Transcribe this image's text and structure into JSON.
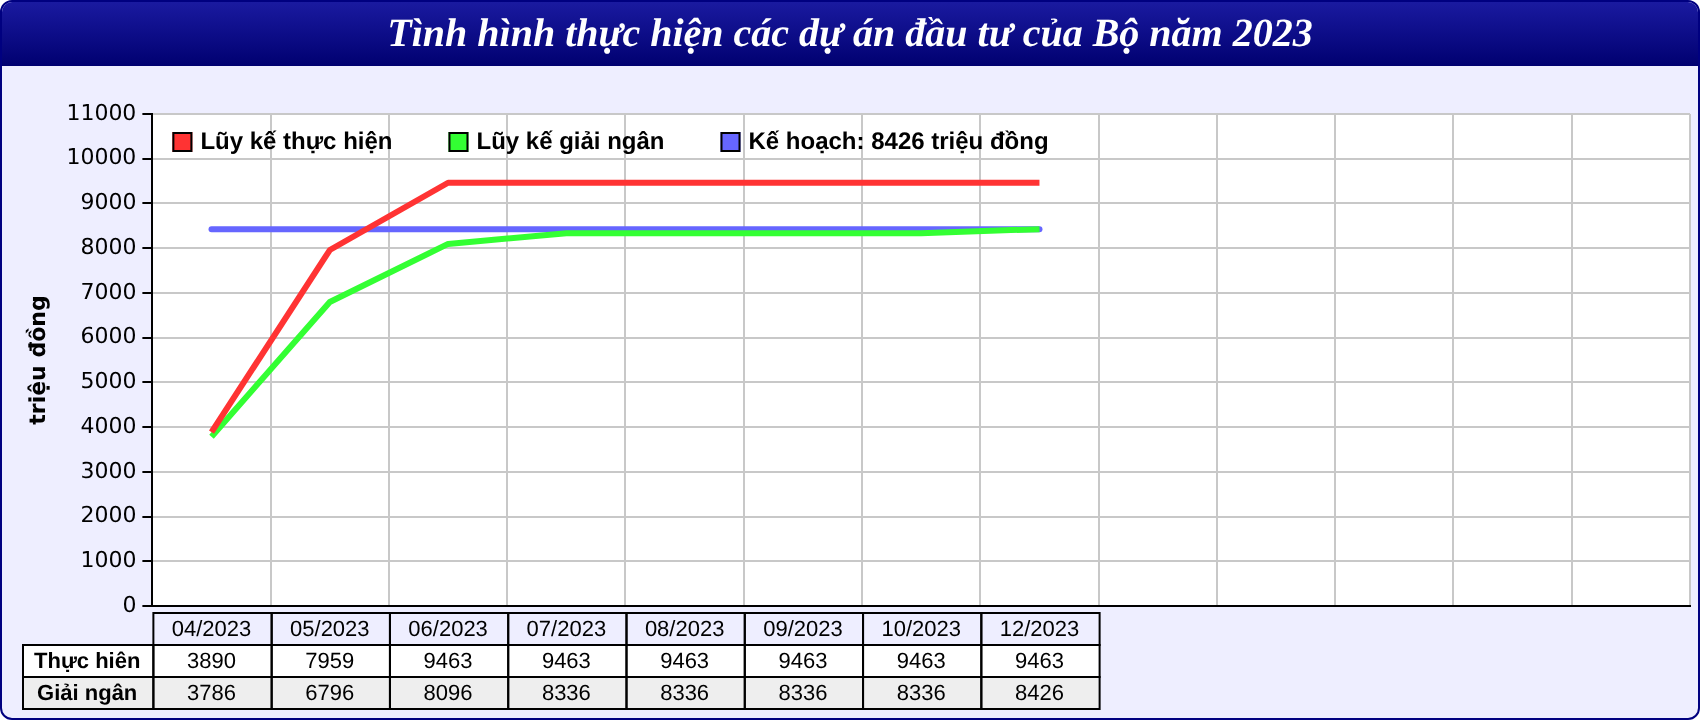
{
  "chart_data": {
    "type": "line",
    "title": "Tình hình thực hiện các dự án đầu tư của Bộ năm 2023",
    "ylabel": "triệu đồng",
    "categories": [
      "04/2023",
      "05/2023",
      "06/2023",
      "07/2023",
      "08/2023",
      "09/2023",
      "10/2023",
      "12/2023"
    ],
    "series": [
      {
        "name": "Lũy kế thực hiện",
        "color": "#ff3333",
        "values": [
          3890,
          7959,
          9463,
          9463,
          9463,
          9463,
          9463,
          9463
        ]
      },
      {
        "name": "Lũy kế giải ngân",
        "color": "#33ff33",
        "values": [
          3786,
          6796,
          8096,
          8336,
          8336,
          8336,
          8336,
          8426
        ]
      }
    ],
    "ref_lines": [
      {
        "axis": "y",
        "value": 8426,
        "label": "Kế hoạch: 8426 triệu đồng",
        "color": "#6666ff",
        "line_style": "solid"
      }
    ],
    "annotations": [
      "Thực hiên",
      "Giải ngân"
    ],
    "ylim": [
      0,
      11000
    ],
    "yticks": [
      0,
      1000,
      2000,
      3000,
      4000,
      5000,
      6000,
      7000,
      8000,
      9000,
      10000,
      11000
    ],
    "grid": true,
    "legend": "top left",
    "marker": "none",
    "line_style": "solid",
    "data_labels": true
  }
}
